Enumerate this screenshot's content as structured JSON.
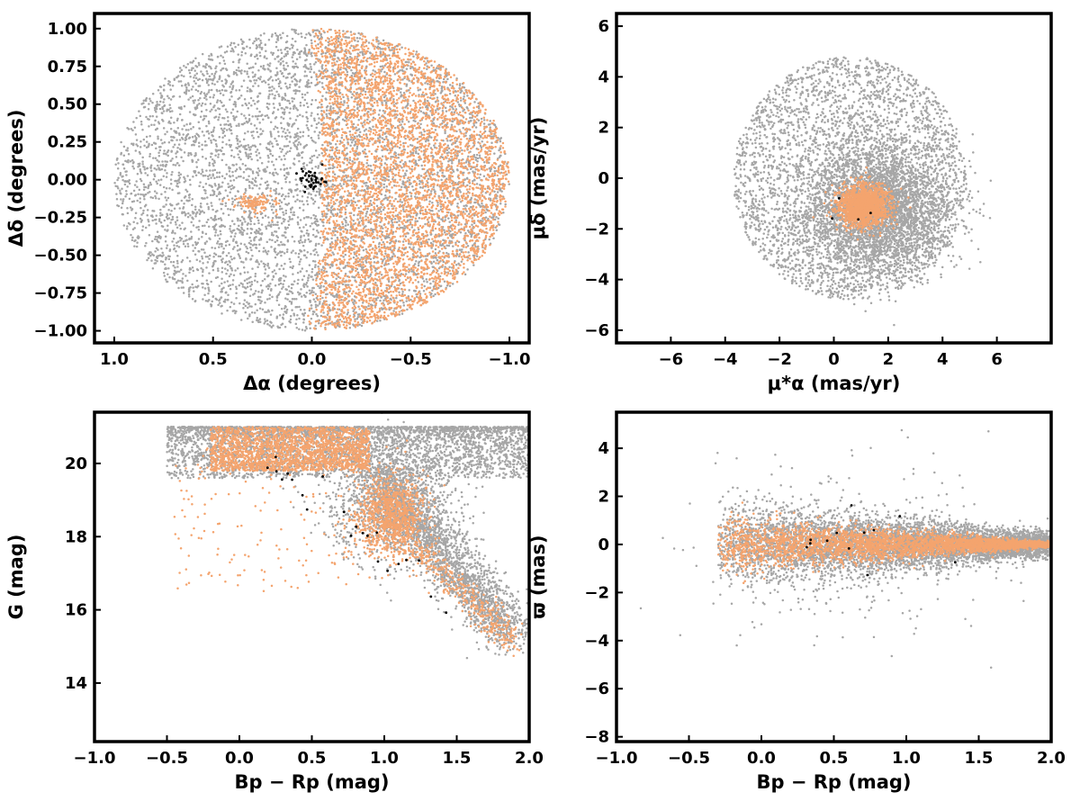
{
  "colors": {
    "field": "#a6a6a6",
    "members": "#f4a46e",
    "highlight": "#000000",
    "frame": "#000000"
  },
  "chart_data": [
    {
      "type": "scatter",
      "xlabel": "Δα (degrees)",
      "ylabel": "Δδ (degrees)",
      "xlim": [
        1.1,
        -1.1
      ],
      "ylim": [
        -1.08,
        1.1
      ],
      "xticks": [
        1.0,
        0.5,
        0.0,
        -0.5,
        -1.0
      ],
      "xtick_labels": [
        "1.0",
        "0.5",
        "0.0",
        "−0.5",
        "−1.0"
      ],
      "yticks": [
        1.0,
        0.75,
        0.5,
        0.25,
        0.0,
        -0.25,
        -0.5,
        -0.75,
        -1.0
      ],
      "ytick_labels": [
        "1.00",
        "0.75",
        "0.50",
        "0.25",
        "0.00",
        "−0.25",
        "−0.50",
        "−0.75",
        "−1.00"
      ],
      "grid": false,
      "series": [
        {
          "color": "#a6a6a6",
          "n": 5500,
          "distribution": "disk",
          "center": [
            0,
            0
          ],
          "radius": [
            1.0,
            1.0
          ]
        },
        {
          "color": "#f4a46e",
          "n": 4200,
          "distribution": "disk_half",
          "center": [
            0,
            0
          ],
          "radius": [
            1.0,
            1.0
          ],
          "x_max": -0.05
        },
        {
          "color": "#f4a46e",
          "n": 120,
          "distribution": "gauss",
          "center": [
            0.28,
            -0.16
          ],
          "sigma": [
            0.05,
            0.03
          ]
        },
        {
          "color": "#000000",
          "n": 40,
          "distribution": "gauss",
          "center": [
            0.0,
            0.0
          ],
          "sigma": [
            0.04,
            0.04
          ]
        }
      ]
    },
    {
      "type": "scatter",
      "xlabel": "μ*α (mas/yr)",
      "ylabel": "μδ (mas/yr)",
      "xlim": [
        -8,
        8
      ],
      "ylim": [
        -6.5,
        6.5
      ],
      "xticks": [
        -6,
        -4,
        -2,
        0,
        2,
        4,
        6
      ],
      "xtick_labels": [
        "−6",
        "−4",
        "−2",
        "0",
        "2",
        "4",
        "6"
      ],
      "yticks": [
        6,
        4,
        2,
        0,
        -2,
        -4,
        -6
      ],
      "ytick_labels": [
        "6",
        "4",
        "2",
        "0",
        "−2",
        "−4",
        "−6"
      ],
      "grid": false,
      "series": [
        {
          "color": "#a6a6a6",
          "n": 3500,
          "distribution": "disk",
          "center": [
            0.6,
            0.0
          ],
          "radius": [
            4.3,
            4.8
          ],
          "x_max": 4.9
        },
        {
          "color": "#a6a6a6",
          "n": 3500,
          "distribution": "gauss",
          "center": [
            1.6,
            -1.2
          ],
          "sigma": [
            1.3,
            1.2
          ]
        },
        {
          "color": "#f4a46e",
          "n": 1600,
          "distribution": "gauss",
          "center": [
            1.1,
            -1.1
          ],
          "sigma": [
            0.45,
            0.4
          ]
        },
        {
          "color": "#000000",
          "n": 4,
          "distribution": "gauss",
          "center": [
            0.6,
            -1.3
          ],
          "sigma": [
            0.3,
            0.3
          ]
        }
      ]
    },
    {
      "type": "scatter",
      "xlabel": "Bp − Rp (mag)",
      "ylabel": "G (mag)",
      "xlim": [
        -1.0,
        2.0
      ],
      "ylim": [
        12.4,
        21.4
      ],
      "xticks": [
        -1.0,
        -0.5,
        0.0,
        0.5,
        1.0,
        1.5,
        2.0
      ],
      "xtick_labels": [
        "−1.0",
        "−0.5",
        "0.0",
        "0.5",
        "1.0",
        "1.5",
        "2.0"
      ],
      "yticks": [
        14,
        16,
        18,
        20
      ],
      "ytick_labels": [
        "14",
        "16",
        "18",
        "20"
      ],
      "grid": false,
      "series": [
        {
          "color": "#a6a6a6",
          "n": 3600,
          "distribution": "band",
          "x": [
            -0.5,
            2.0
          ],
          "y": [
            19.6,
            21.0
          ],
          "skew": 1.8
        },
        {
          "color": "#a6a6a6",
          "n": 2000,
          "distribution": "sequence",
          "x0": 1.0,
          "x1": 1.9,
          "y0": 19.5,
          "y1": 15.2,
          "spread": [
            0.1,
            0.3
          ]
        },
        {
          "color": "#a6a6a6",
          "n": 1200,
          "distribution": "gauss",
          "center": [
            1.05,
            18.9
          ],
          "sigma": [
            0.22,
            0.8
          ]
        },
        {
          "color": "#f4a46e",
          "n": 2000,
          "distribution": "band",
          "x": [
            -0.2,
            0.9
          ],
          "y": [
            19.8,
            21.0
          ],
          "skew": 0.9
        },
        {
          "color": "#f4a46e",
          "n": 900,
          "distribution": "gauss",
          "center": [
            1.05,
            18.6
          ],
          "sigma": [
            0.12,
            0.55
          ]
        },
        {
          "color": "#f4a46e",
          "n": 400,
          "distribution": "sequence",
          "x0": 1.05,
          "x1": 1.9,
          "y0": 18.3,
          "y1": 15.1,
          "spread": [
            0.05,
            0.2
          ]
        },
        {
          "color": "#f4a46e",
          "n": 180,
          "distribution": "uniform",
          "x": [
            -0.45,
            0.9
          ],
          "y": [
            16.5,
            20.5
          ]
        },
        {
          "color": "#000000",
          "n": 22,
          "distribution": "sequence",
          "x0": 0.2,
          "x1": 1.45,
          "y0": 20.2,
          "y1": 16.0,
          "spread": [
            0.1,
            0.3
          ]
        }
      ]
    },
    {
      "type": "scatter",
      "xlabel": "Bp − Rp (mag)",
      "ylabel": "ϖ (mas)",
      "xlim": [
        -1.0,
        2.0
      ],
      "ylim": [
        -8.2,
        5.5
      ],
      "xticks": [
        -1.0,
        -0.5,
        0.0,
        0.5,
        1.0,
        1.5,
        2.0
      ],
      "xtick_labels": [
        "−1.0",
        "−0.5",
        "0.0",
        "0.5",
        "1.0",
        "1.5",
        "2.0"
      ],
      "yticks": [
        4,
        2,
        0,
        -2,
        -4,
        -6,
        -8
      ],
      "ytick_labels": [
        "4",
        "2",
        "0",
        "−2",
        "−4",
        "−6",
        "−8"
      ],
      "grid": false,
      "series": [
        {
          "color": "#a6a6a6",
          "n": 5500,
          "distribution": "funnel",
          "x": [
            -0.3,
            2.0
          ],
          "y0": 0.0,
          "s0": 0.9,
          "s1": 0.25
        },
        {
          "color": "#a6a6a6",
          "n": 250,
          "distribution": "gauss",
          "center": [
            0.7,
            0.0
          ],
          "sigma": [
            0.55,
            2.2
          ]
        },
        {
          "color": "#f4a46e",
          "n": 3200,
          "distribution": "funnel",
          "x": [
            -0.3,
            2.0
          ],
          "y0": 0.0,
          "s0": 0.6,
          "s1": 0.05
        },
        {
          "color": "#000000",
          "n": 12,
          "distribution": "gauss",
          "center": [
            0.55,
            0.0
          ],
          "sigma": [
            0.35,
            0.6
          ]
        }
      ]
    }
  ]
}
